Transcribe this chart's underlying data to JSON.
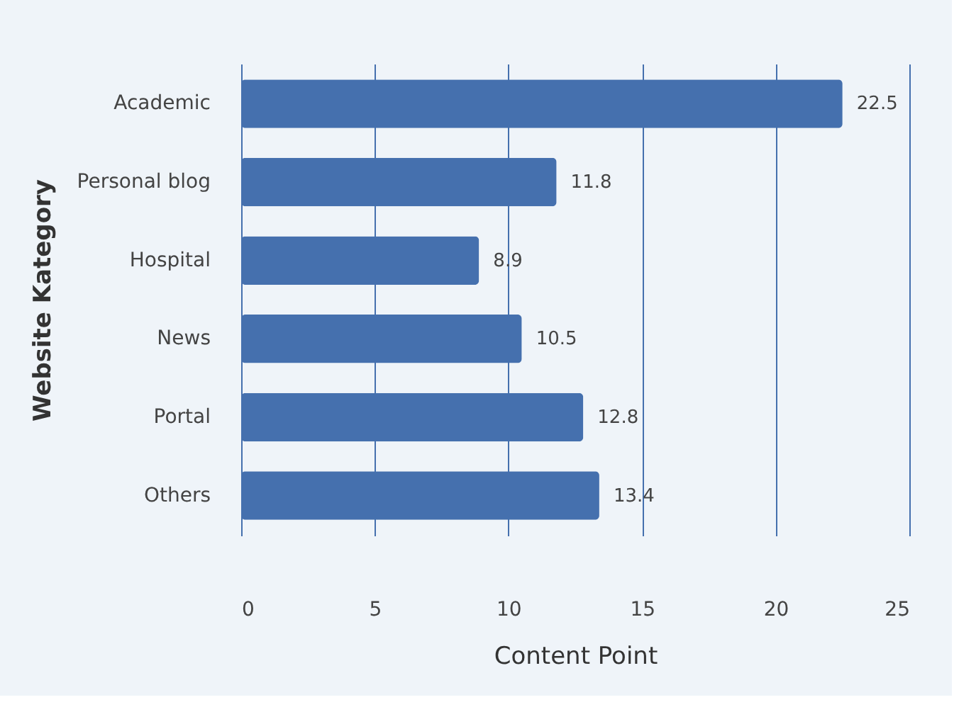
{
  "chart_data": {
    "type": "bar",
    "orientation": "horizontal",
    "xlabel": "Content Point",
    "ylabel": "Website Kategory",
    "categories": [
      "Academic",
      "Personal blog",
      "Hospital",
      "News",
      "Portal",
      "Others"
    ],
    "values": [
      22.5,
      11.8,
      8.9,
      10.5,
      12.8,
      13.4
    ],
    "color": "#4570ae",
    "xlim": [
      0,
      25
    ],
    "xticks": [
      0,
      5,
      10,
      15,
      20,
      25
    ],
    "grid": "x",
    "data_labels": true
  }
}
